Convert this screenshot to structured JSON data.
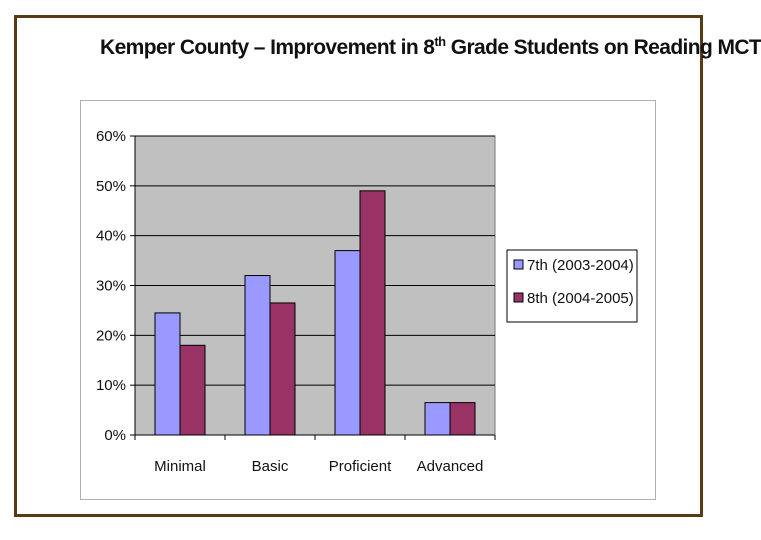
{
  "title": {
    "pre": "Kemper County – Improvement in 8",
    "sup": "th",
    "post": " Grade Students on Reading MCT"
  },
  "colors": {
    "plot_bg": "#c0c0c0",
    "series_7th": "#9999ff",
    "series_8th": "#993366",
    "frame": "#5a3a16"
  },
  "chart_data": {
    "type": "bar",
    "title": "Kemper County – Improvement in 8th Grade Students on Reading MCT",
    "categories": [
      "Minimal",
      "Basic",
      "Proficient",
      "Advanced"
    ],
    "series": [
      {
        "name": "7th (2003-2004)",
        "values": [
          24.5,
          32,
          37,
          6.5
        ]
      },
      {
        "name": "8th (2004-2005)",
        "values": [
          18,
          26.5,
          49,
          6.5
        ]
      }
    ],
    "ylim": [
      0,
      60
    ],
    "yticks": [
      "0%",
      "10%",
      "20%",
      "30%",
      "40%",
      "50%",
      "60%"
    ],
    "xlabel": "",
    "ylabel": "",
    "grid": true,
    "legend": "right"
  }
}
